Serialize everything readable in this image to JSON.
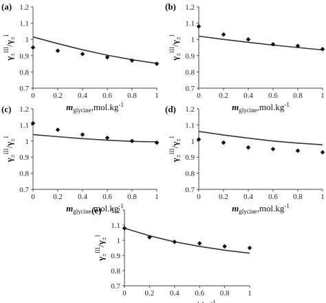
{
  "chart_data": [
    {
      "type": "scatter",
      "panel": "(a)",
      "x": [
        0,
        0.2,
        0.4,
        0.6,
        0.8,
        1
      ],
      "series": [
        {
          "kind": "points",
          "values": [
            0.95,
            0.93,
            0.91,
            0.89,
            0.87,
            0.85
          ]
        },
        {
          "kind": "line",
          "values": [
            1.015,
            0.974,
            0.936,
            0.903,
            0.875,
            0.852
          ]
        }
      ],
      "xlabel_main": "m",
      "xlabel_sub": "glycine",
      "xlabel_unit": ",mol.kg",
      "ylabel_base": "γ",
      "ylabel_sub": "±",
      "ylabel_sup1": "III",
      "ylabel_sup2": "I",
      "xlim": [
        0,
        1
      ],
      "ylim": [
        0.7,
        1.2
      ],
      "xticks": [
        "0",
        "0.2",
        "0.4",
        "0.6",
        "0.8",
        "1"
      ],
      "yticks": [
        "0.7",
        "0.8",
        "0.9",
        "1",
        "1.1",
        "1.2"
      ]
    },
    {
      "type": "scatter",
      "panel": "(b)",
      "x": [
        0,
        0.2,
        0.4,
        0.6,
        0.8,
        1
      ],
      "series": [
        {
          "kind": "points",
          "values": [
            1.08,
            1.03,
            1.0,
            0.97,
            0.96,
            0.94
          ]
        },
        {
          "kind": "line",
          "values": [
            1.02,
            1.0,
            0.982,
            0.965,
            0.95,
            0.935
          ]
        }
      ],
      "xlabel_main": "m",
      "xlabel_sub": "glycine",
      "xlabel_unit": ",mol.kg",
      "ylabel_base": "γ",
      "ylabel_sub": "±",
      "ylabel_sup1": "III",
      "ylabel_sup2": "I",
      "xlim": [
        0,
        1
      ],
      "ylim": [
        0.7,
        1.2
      ],
      "xticks": [
        "0",
        "0.2",
        "0.4",
        "0.6",
        "0.8",
        "1"
      ],
      "yticks": [
        "0.7",
        "0.8",
        "0.9",
        "1",
        "1.1",
        "1.2"
      ]
    },
    {
      "type": "scatter",
      "panel": "(c)",
      "x": [
        0,
        0.2,
        0.4,
        0.6,
        0.8,
        1
      ],
      "series": [
        {
          "kind": "points",
          "values": [
            1.11,
            1.07,
            1.04,
            1.02,
            1.0,
            0.99
          ]
        },
        {
          "kind": "line",
          "values": [
            1.04,
            1.027,
            1.015,
            1.005,
            0.998,
            0.995
          ]
        }
      ],
      "xlabel_main": "m",
      "xlabel_sub": "glycine",
      "xlabel_unit": ",mol.kg",
      "ylabel_base": "γ",
      "ylabel_sub": "±",
      "ylabel_sup1": "III",
      "ylabel_sup2": "I",
      "xlim": [
        0,
        1
      ],
      "ylim": [
        0.7,
        1.2
      ],
      "xticks": [
        "0",
        "0.2",
        "0.4",
        "0.6",
        "0.8",
        "1"
      ],
      "yticks": [
        "0.7",
        "0.8",
        "0.9",
        "1",
        "1.1",
        "1.2"
      ]
    },
    {
      "type": "scatter",
      "panel": "(d)",
      "x": [
        0,
        0.2,
        0.4,
        0.6,
        0.8,
        1
      ],
      "series": [
        {
          "kind": "points",
          "values": [
            1.01,
            0.99,
            0.96,
            0.95,
            0.94,
            0.93
          ]
        },
        {
          "kind": "line",
          "values": [
            1.06,
            1.037,
            1.018,
            1.0,
            0.987,
            0.977
          ]
        }
      ],
      "xlabel_main": "m",
      "xlabel_sub": "glycine",
      "xlabel_unit": ",mol.kg",
      "ylabel_base": "γ",
      "ylabel_sub": "±",
      "ylabel_sup1": "III",
      "ylabel_sup2": "I",
      "xlim": [
        0,
        1
      ],
      "ylim": [
        0.7,
        1.2
      ],
      "xticks": [
        "0",
        "0.2",
        "0.4",
        "0.6",
        "0.8",
        "1"
      ],
      "yticks": [
        "0.7",
        "0.8",
        "0.9",
        "1",
        "1.1",
        "1.2"
      ]
    },
    {
      "type": "scatter",
      "panel": "(e)",
      "x": [
        0,
        0.2,
        0.4,
        0.6,
        0.8,
        1
      ],
      "series": [
        {
          "kind": "points",
          "values": [
            1.08,
            1.02,
            0.99,
            0.98,
            0.96,
            0.95
          ]
        },
        {
          "kind": "line",
          "values": [
            1.08,
            1.03,
            0.99,
            0.96,
            0.935,
            0.915
          ]
        }
      ],
      "xlabel_main": "m",
      "xlabel_sub": "glycine",
      "xlabel_unit": ",mol.kg",
      "ylabel_base": "γ",
      "ylabel_sub": "±",
      "ylabel_sup1": "III",
      "ylabel_sup2": "I",
      "xlim": [
        0,
        1
      ],
      "ylim": [
        0.7,
        1.2
      ],
      "xticks": [
        "0",
        "0.2",
        "0.4",
        "0.6",
        "0.8",
        "1"
      ],
      "yticks": [
        "0.7",
        "0.8",
        "0.9",
        "1",
        "1.1",
        "1.2"
      ]
    }
  ]
}
